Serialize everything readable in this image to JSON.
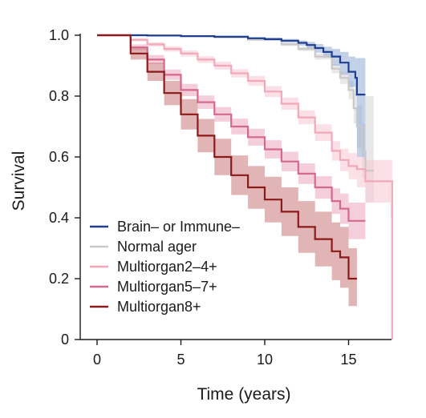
{
  "chart_data": {
    "type": "line",
    "xlabel": "Time (years)",
    "ylabel": "Survival",
    "xlim": [
      -0.6,
      18
    ],
    "ylim": [
      0,
      1.0
    ],
    "xticks": [
      0,
      5,
      10,
      15
    ],
    "yticks": [
      0,
      0.2,
      0.4,
      0.6,
      0.8,
      1.0
    ],
    "ytick_labels": [
      "0",
      "0.2",
      "0.4",
      "0.6",
      "0.8",
      "1.0"
    ],
    "grid": false,
    "legend_position": "lower-left",
    "series": [
      {
        "name": "Normal ager",
        "color": "#c9c9c9",
        "band_color": "#d6d6d6",
        "x": [
          0,
          1.0,
          3,
          5,
          7,
          9,
          11,
          12,
          13,
          14,
          14.5,
          15,
          15.3,
          15.5,
          15.8,
          16.0,
          16.5
        ],
        "y": [
          1.0,
          1.0,
          0.999,
          0.997,
          0.993,
          0.985,
          0.97,
          0.955,
          0.93,
          0.89,
          0.86,
          0.82,
          0.76,
          0.7,
          0.62,
          0.555,
          0.555
        ],
        "ci_low": [
          1.0,
          1.0,
          0.998,
          0.995,
          0.99,
          0.982,
          0.965,
          0.948,
          0.92,
          0.875,
          0.84,
          0.79,
          0.71,
          0.63,
          0.53,
          0.45,
          0.2
        ],
        "ci_high": [
          1.0,
          1.0,
          1.0,
          0.999,
          0.996,
          0.989,
          0.976,
          0.962,
          0.94,
          0.905,
          0.88,
          0.85,
          0.81,
          0.77,
          0.71,
          0.8,
          0.8
        ]
      },
      {
        "name": "Brain– or Immune–",
        "color": "#1f3f8f",
        "band_color": "#8faad6",
        "x": [
          0,
          1.0,
          3,
          5,
          7,
          9,
          10,
          11,
          12,
          12.5,
          13,
          13.5,
          14,
          14.5,
          15.0,
          15.4,
          15.5,
          16.0
        ],
        "y": [
          1.0,
          1.0,
          0.999,
          0.997,
          0.995,
          0.99,
          0.987,
          0.982,
          0.975,
          0.968,
          0.958,
          0.945,
          0.93,
          0.91,
          0.88,
          0.86,
          0.805,
          0.805
        ],
        "ci_low": [
          1.0,
          1.0,
          0.998,
          0.995,
          0.992,
          0.986,
          0.982,
          0.976,
          0.966,
          0.957,
          0.943,
          0.926,
          0.9,
          0.87,
          0.83,
          0.8,
          0.6,
          0.58
        ],
        "ci_high": [
          1.0,
          1.0,
          1.0,
          0.999,
          0.998,
          0.994,
          0.992,
          0.988,
          0.983,
          0.978,
          0.971,
          0.962,
          0.955,
          0.945,
          0.93,
          0.925,
          0.925,
          0.925
        ]
      },
      {
        "name": "Multiorgan2–4+",
        "color": "#f2a8b8",
        "band_color": "#f7c9d3",
        "x": [
          0,
          1.0,
          2,
          3,
          4,
          5,
          6,
          7,
          8,
          9,
          10,
          11,
          12,
          13,
          14,
          14.5,
          15.0,
          15.5,
          16.0,
          17.5,
          17.6
        ],
        "y": [
          1.0,
          1.0,
          0.985,
          0.97,
          0.955,
          0.94,
          0.92,
          0.9,
          0.875,
          0.85,
          0.815,
          0.775,
          0.73,
          0.68,
          0.62,
          0.59,
          0.57,
          0.56,
          0.52,
          0.52,
          0.0
        ],
        "ci_low": [
          1.0,
          1.0,
          0.98,
          0.963,
          0.946,
          0.93,
          0.909,
          0.887,
          0.861,
          0.834,
          0.797,
          0.755,
          0.707,
          0.653,
          0.588,
          0.553,
          0.527,
          0.5,
          0.45,
          0.4,
          0.0
        ],
        "ci_high": [
          1.0,
          1.0,
          0.99,
          0.977,
          0.964,
          0.95,
          0.931,
          0.913,
          0.889,
          0.866,
          0.833,
          0.795,
          0.753,
          0.707,
          0.652,
          0.627,
          0.613,
          0.6,
          0.59,
          0.59,
          0.59
        ]
      },
      {
        "name": "Multiorgan5–7+",
        "color": "#d4698c",
        "band_color": "#eba7bd",
        "x": [
          0,
          1.0,
          2,
          3,
          4,
          5,
          6,
          7,
          8,
          9,
          10,
          11,
          12,
          13,
          14,
          14.5,
          15.0,
          16.0
        ],
        "y": [
          1.0,
          1.0,
          0.96,
          0.92,
          0.87,
          0.82,
          0.78,
          0.74,
          0.7,
          0.665,
          0.625,
          0.585,
          0.545,
          0.5,
          0.455,
          0.43,
          0.39,
          0.39
        ],
        "ci_low": [
          1.0,
          1.0,
          0.95,
          0.905,
          0.853,
          0.8,
          0.758,
          0.716,
          0.674,
          0.637,
          0.595,
          0.553,
          0.511,
          0.463,
          0.413,
          0.38,
          0.33,
          0.32
        ],
        "ci_high": [
          1.0,
          1.0,
          0.97,
          0.935,
          0.887,
          0.84,
          0.802,
          0.764,
          0.726,
          0.693,
          0.655,
          0.617,
          0.579,
          0.537,
          0.497,
          0.48,
          0.45,
          0.45
        ]
      },
      {
        "name": "Multiorgan8+",
        "color": "#8b1a1a",
        "band_color": "#c97878",
        "x": [
          0,
          1.0,
          2,
          3,
          4,
          5,
          6,
          7,
          8,
          9,
          10,
          11,
          12,
          13,
          14,
          14.5,
          15.0,
          15.5
        ],
        "y": [
          1.0,
          1.0,
          0.94,
          0.88,
          0.81,
          0.74,
          0.67,
          0.6,
          0.54,
          0.5,
          0.46,
          0.42,
          0.37,
          0.33,
          0.29,
          0.27,
          0.2,
          0.2
        ],
        "ci_low": [
          1.0,
          1.0,
          0.92,
          0.85,
          0.77,
          0.69,
          0.615,
          0.54,
          0.475,
          0.43,
          0.385,
          0.34,
          0.285,
          0.24,
          0.195,
          0.17,
          0.11,
          0.11
        ],
        "ci_high": [
          1.0,
          1.0,
          0.96,
          0.91,
          0.85,
          0.79,
          0.725,
          0.66,
          0.605,
          0.57,
          0.535,
          0.5,
          0.455,
          0.42,
          0.385,
          0.37,
          0.3,
          0.3
        ]
      }
    ],
    "legend_order": [
      1,
      0,
      2,
      3,
      4
    ]
  }
}
